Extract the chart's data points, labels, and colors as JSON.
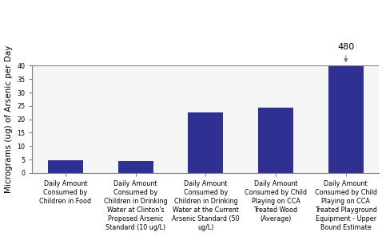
{
  "categories": [
    "Daily Amount\nConsumed by\nChildren in Food",
    "Daily Amount\nConsumed by\nChildren in Drinking\nWater at Clinton's\nProposed Arsenic\nStandard (10 ug/L)",
    "Daily Amount\nConsumed by\nChildren in Drinking\nWater at the Current\nArsenic Standard (50\nug/L)",
    "Daily Amount\nConsumed by Child\nPlaying on CCA\nTreated Wood\n(Average)",
    "Daily Amount\nConsumed by Child\nPlaying on CCA\nTreated Playground\nEquipment - Upper\nBound Estimate"
  ],
  "values": [
    4.7,
    4.5,
    22.5,
    24.5,
    40.0
  ],
  "bar_color": "#2e3191",
  "ylabel": "Micrograms (ug) of Arsenic per Day",
  "ylim": [
    0,
    40
  ],
  "yticks": [
    0,
    5,
    10,
    15,
    20,
    25,
    30,
    35,
    40
  ],
  "annotation_value": "480",
  "annotation_bar_index": 4,
  "background_color": "#ffffff",
  "plot_bg_color": "#f5f5f5",
  "tick_fontsize": 5.8,
  "ylabel_fontsize": 7.5,
  "bar_width": 0.5
}
